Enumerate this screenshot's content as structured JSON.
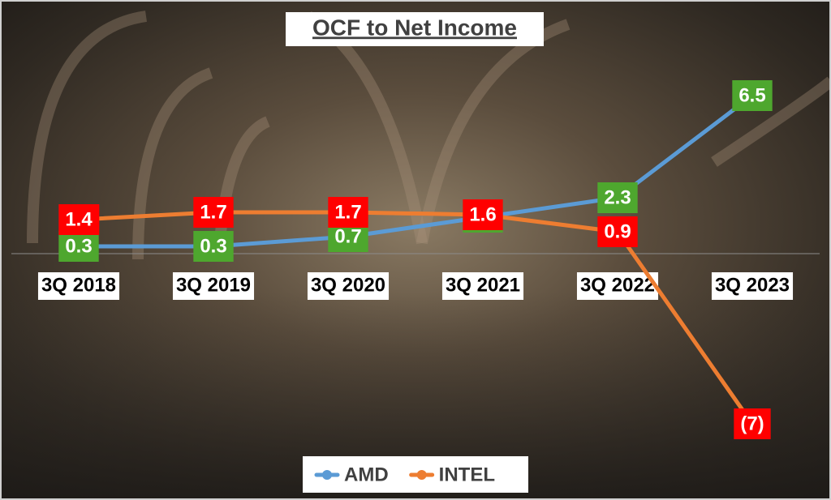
{
  "chart_data": {
    "type": "line",
    "title": "OCF to Net Income",
    "categories": [
      "3Q 2018",
      "3Q 2019",
      "3Q 2020",
      "3Q 2021",
      "3Q 2022",
      "3Q 2023"
    ],
    "series": [
      {
        "name": "AMD",
        "color": "#5b9bd5",
        "label_color": "#4ea72e",
        "values": [
          0.3,
          0.3,
          0.7,
          1.5,
          2.3,
          6.5
        ]
      },
      {
        "name": "INTEL",
        "color": "#ed7d31",
        "label_color": "#ff0000",
        "values": [
          1.4,
          1.7,
          1.7,
          1.6,
          0.9,
          -7
        ],
        "value_labels": [
          "1.4",
          "1.7",
          "1.7",
          "1.6",
          "0.9",
          "(7)"
        ]
      }
    ],
    "ylim": [
      -8,
      8
    ],
    "legend": "bottom"
  }
}
